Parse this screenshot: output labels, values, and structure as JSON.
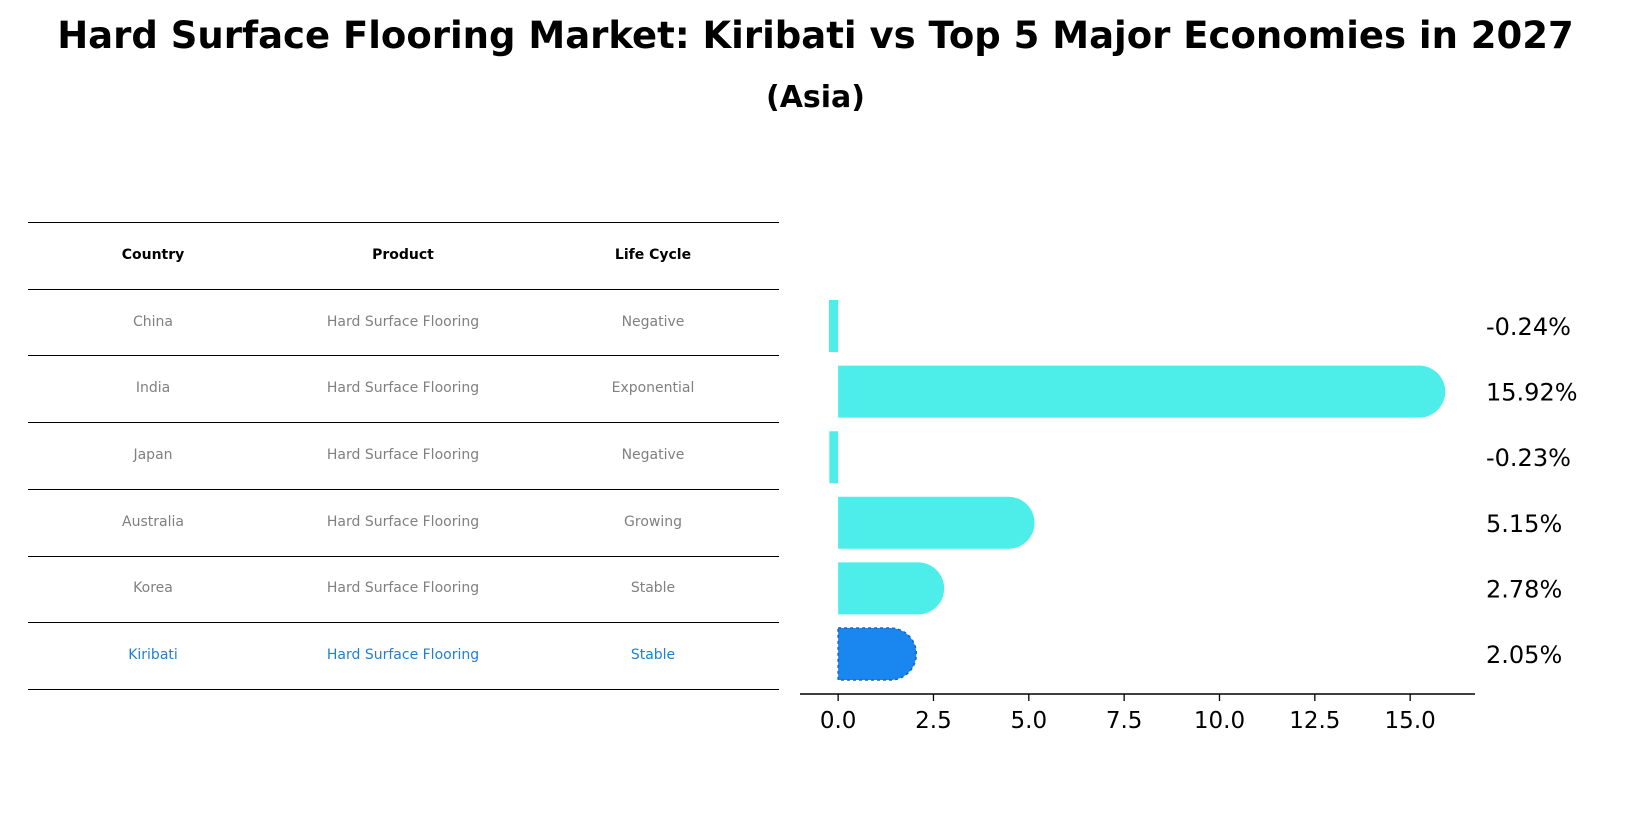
{
  "chart_data": {
    "type": "bar",
    "orientation": "horizontal",
    "title": "Hard Surface Flooring Market: Kiribati vs Top 5 Major Economies in 2027",
    "subtitle": "(Asia)",
    "categories": [
      "China",
      "India",
      "Japan",
      "Australia",
      "Korea",
      "Kiribati"
    ],
    "values": [
      -0.24,
      15.92,
      -0.23,
      5.15,
      2.78,
      2.05
    ],
    "value_labels": [
      "-0.24%",
      "15.92%",
      "-0.23%",
      "5.15%",
      "2.78%",
      "2.05%"
    ],
    "highlight": "Kiribati",
    "xlim": [
      -1.0,
      16.7
    ],
    "xticks": [
      0.0,
      2.5,
      5.0,
      7.5,
      10.0,
      12.5,
      15.0
    ],
    "xtick_labels": [
      "0.0",
      "2.5",
      "5.0",
      "7.5",
      "10.0",
      "12.5",
      "15.0"
    ],
    "colors": {
      "bar": "#4deeea",
      "highlight": "#1a86f0"
    }
  },
  "table": {
    "headers": [
      "Country",
      "Product",
      "Life Cycle"
    ],
    "rows": [
      [
        "China",
        "Hard Surface Flooring",
        "Negative"
      ],
      [
        "India",
        "Hard Surface Flooring",
        "Exponential"
      ],
      [
        "Japan",
        "Hard Surface Flooring",
        "Negative"
      ],
      [
        "Australia",
        "Hard Surface Flooring",
        "Growing"
      ],
      [
        "Korea",
        "Hard Surface Flooring",
        "Stable"
      ],
      [
        "Kiribati",
        "Hard Surface Flooring",
        "Stable"
      ]
    ],
    "colors": {
      "text": "#808080",
      "highlight": "#1f7fd6"
    }
  }
}
